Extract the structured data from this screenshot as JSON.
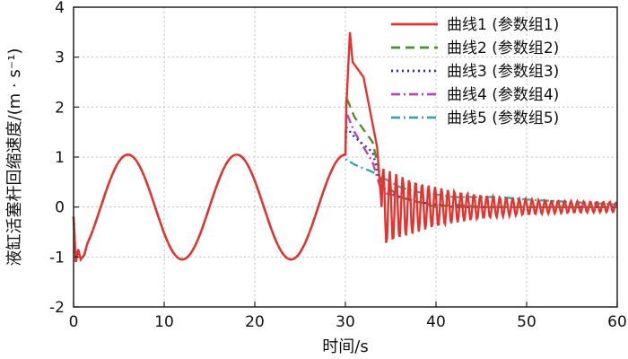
{
  "chart_data": {
    "type": "line",
    "xlabel": "时间/s",
    "ylabel": "液缸活塞杆回缩速度/(m · s⁻¹)",
    "xlim": [
      0,
      60
    ],
    "ylim": [
      -2,
      4
    ],
    "x_ticks": [
      "0",
      "10",
      "20",
      "30",
      "40",
      "50",
      "60"
    ],
    "y_ticks": [
      "-2",
      "-1",
      "0",
      "1",
      "2",
      "3",
      "4"
    ],
    "grid": true,
    "legend_position": "top-right",
    "shared_segment": {
      "description_x": [
        0,
        30
      ],
      "sine_amplitude": 1.05,
      "sine_period": 12,
      "x": [
        0,
        0.3,
        0.6,
        1,
        1.5,
        3,
        6,
        9,
        12,
        15,
        18,
        21,
        24,
        27,
        30
      ],
      "y": [
        -0.2,
        -1.1,
        -0.9,
        -1.0,
        -0.95,
        -0.05,
        1.05,
        0.0,
        -1.05,
        0.0,
        1.05,
        0.0,
        -1.05,
        0.0,
        1.0
      ]
    },
    "series": [
      {
        "name": "曲线1 (参数组1)",
        "color": "#e3342f",
        "dash": "solid",
        "x": [
          30,
          30.1,
          30.5,
          30.8,
          32,
          33.5,
          34,
          34.5,
          36,
          38,
          40,
          42,
          45,
          50,
          55,
          60
        ],
        "y": [
          1.0,
          2.0,
          3.5,
          2.9,
          2.6,
          1.2,
          -0.85,
          0.7,
          -0.5,
          0.45,
          -0.35,
          0.3,
          -0.2,
          0.1,
          0.05,
          0.05
        ],
        "oscillation": {
          "from": 34,
          "to": 60,
          "freq": 1.4,
          "amp_start": 0.8,
          "amp_end": 0.07,
          "center_start": 0.0,
          "center_end": 0.0
        }
      },
      {
        "name": "曲线2 (参数组2)",
        "color": "#4e8f2e",
        "dash": "10,6",
        "x": [
          30,
          30.1,
          31,
          33,
          34,
          36,
          38,
          40,
          42,
          45,
          50,
          55,
          60
        ],
        "y": [
          1.0,
          2.2,
          1.8,
          1.3,
          0.5,
          0.2,
          0.1,
          0.0,
          0.05,
          0.0,
          0.0,
          0.0,
          0.0
        ]
      },
      {
        "name": "曲线3 (参数组3)",
        "color": "#2c2f9c",
        "dash": "2,4",
        "x": [
          30,
          30.1,
          31,
          33,
          34,
          36,
          38,
          40,
          42,
          45,
          50,
          55,
          60
        ],
        "y": [
          1.0,
          1.6,
          1.4,
          1.1,
          0.4,
          0.2,
          0.1,
          0.05,
          0.0,
          0.0,
          0.0,
          0.0,
          0.0
        ]
      },
      {
        "name": "曲线4 (参数组4)",
        "color": "#b548b5",
        "dash": "10,4,2,4",
        "x": [
          30,
          30.1,
          31,
          32,
          33,
          34,
          36,
          38,
          40,
          42,
          45,
          50,
          55,
          60
        ],
        "y": [
          1.0,
          1.9,
          1.5,
          1.2,
          0.9,
          0.3,
          0.2,
          0.1,
          0.05,
          0.0,
          0.0,
          0.0,
          0.0,
          0.0
        ]
      },
      {
        "name": "曲线5 (参数组5)",
        "color": "#3aa6a6",
        "dash": "10,4,2,4",
        "x": [
          30,
          30.1,
          31,
          33,
          34,
          36,
          38,
          40,
          42,
          45,
          47,
          50,
          55,
          60
        ],
        "y": [
          1.0,
          0.95,
          0.85,
          0.7,
          0.6,
          0.4,
          0.3,
          0.25,
          0.2,
          0.2,
          0.2,
          0.15,
          0.1,
          0.05
        ]
      }
    ]
  }
}
